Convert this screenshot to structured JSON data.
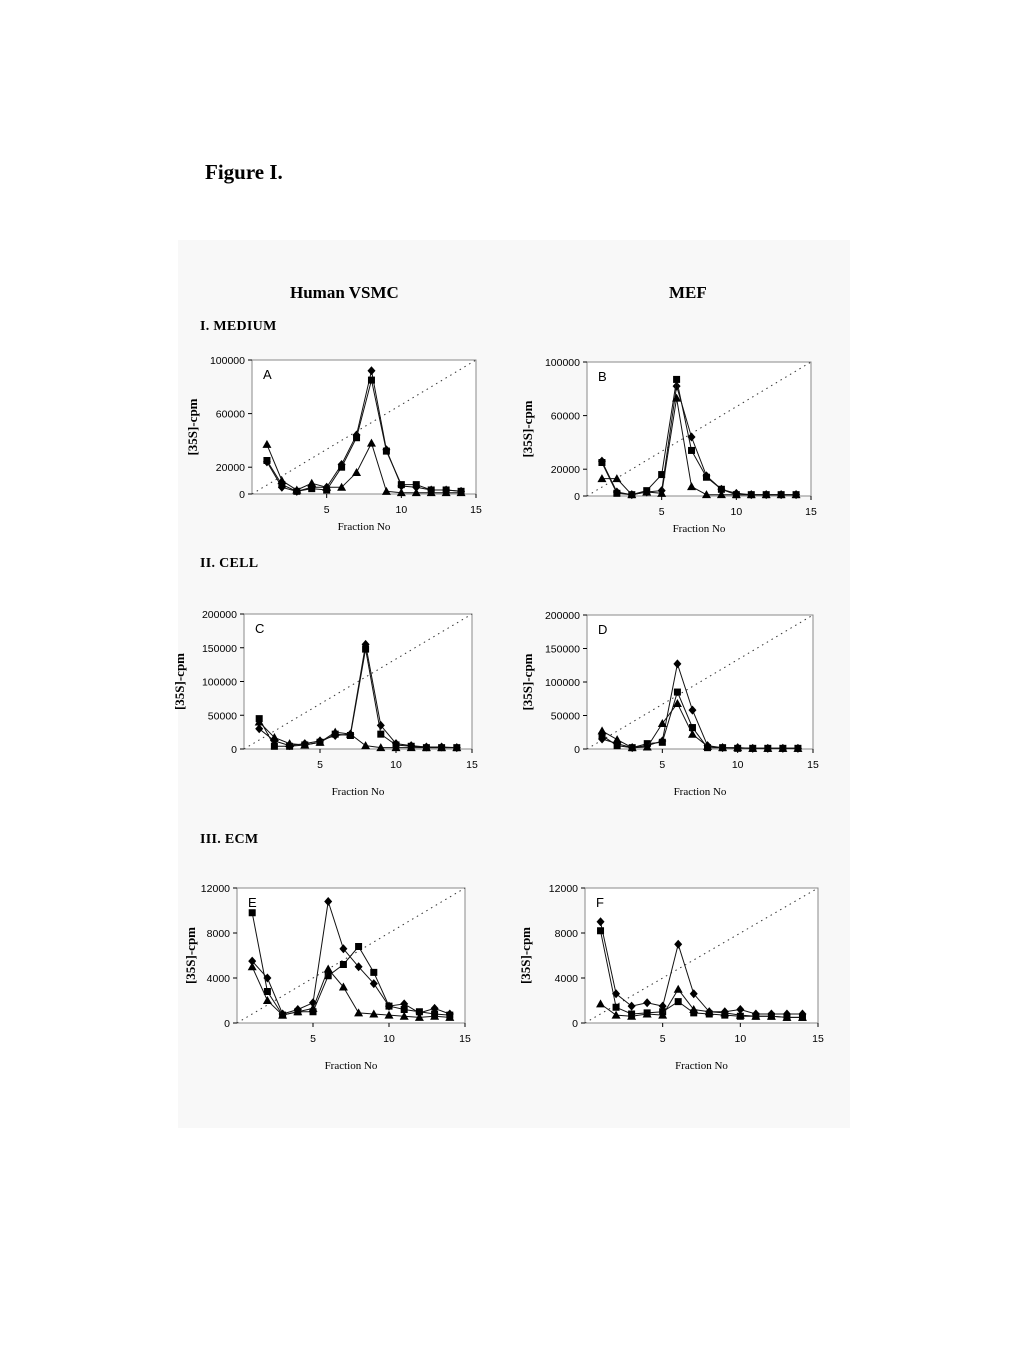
{
  "figure_title": "Figure I.",
  "column_headers": [
    "Human VSMC",
    "MEF"
  ],
  "section_headers": [
    "I. MEDIUM",
    "II. CELL",
    "III. ECM"
  ],
  "chart_data": [
    {
      "type": "line",
      "panel": "A",
      "xlabel": "Fraction No",
      "ylabel": "[35S]-cpm",
      "xlim": [
        0,
        15
      ],
      "ylim": [
        0,
        100000
      ],
      "yticks": [
        0,
        20000,
        60000,
        100000
      ],
      "xticks": [
        5,
        10,
        15
      ],
      "series": [
        {
          "marker": "diamond",
          "x": [
            1,
            2,
            3,
            4,
            5,
            6,
            7,
            8,
            9,
            10,
            11,
            12,
            13,
            14
          ],
          "values": [
            24000,
            5000,
            2000,
            5000,
            5000,
            22000,
            44000,
            92000,
            33000,
            6000,
            5000,
            3000,
            3000,
            2000
          ]
        },
        {
          "marker": "square",
          "x": [
            1,
            2,
            3,
            4,
            5,
            6,
            7,
            8,
            9,
            10,
            11,
            12,
            13,
            14
          ],
          "values": [
            25000,
            7000,
            2000,
            4000,
            3000,
            20000,
            42000,
            85000,
            32000,
            7000,
            7000,
            3000,
            3000,
            2000
          ]
        },
        {
          "marker": "triangle",
          "x": [
            1,
            2,
            3,
            4,
            5,
            6,
            7,
            8,
            9,
            10,
            11,
            12,
            13,
            14
          ],
          "values": [
            37000,
            10000,
            3000,
            8000,
            5000,
            5000,
            16000,
            38000,
            2000,
            1000,
            1000,
            1000,
            1000,
            1000
          ]
        }
      ]
    },
    {
      "type": "line",
      "panel": "B",
      "xlabel": "Fraction No",
      "ylabel": "[35S]-cpm",
      "xlim": [
        0,
        15
      ],
      "ylim": [
        0,
        100000
      ],
      "yticks": [
        0,
        20000,
        60000,
        100000
      ],
      "xticks": [
        5,
        10,
        15
      ],
      "series": [
        {
          "marker": "diamond",
          "x": [
            1,
            2,
            3,
            4,
            5,
            6,
            7,
            8,
            9,
            10,
            11,
            12,
            13,
            14
          ],
          "values": [
            26000,
            3000,
            1000,
            3000,
            4000,
            82000,
            44000,
            15000,
            5000,
            2000,
            1000,
            1000,
            1000,
            1000
          ]
        },
        {
          "marker": "square",
          "x": [
            1,
            2,
            3,
            4,
            5,
            6,
            7,
            8,
            9,
            10,
            11,
            12,
            13,
            14
          ],
          "values": [
            25000,
            2000,
            1000,
            4000,
            16000,
            87000,
            34000,
            14000,
            5000,
            1000,
            1000,
            1000,
            1000,
            1000
          ]
        },
        {
          "marker": "triangle",
          "x": [
            1,
            2,
            3,
            4,
            5,
            6,
            7,
            8,
            9,
            10,
            11,
            12,
            13,
            14
          ],
          "values": [
            13000,
            13000,
            1000,
            3000,
            2000,
            73000,
            7000,
            1000,
            1000,
            1000,
            1000,
            1000,
            1000,
            1000
          ]
        }
      ]
    },
    {
      "type": "line",
      "panel": "C",
      "xlabel": "Fraction No",
      "ylabel": "[35S]-cpm",
      "xlim": [
        0,
        15
      ],
      "ylim": [
        0,
        200000
      ],
      "yticks": [
        0,
        50000,
        100000,
        150000,
        200000
      ],
      "xticks": [
        5,
        10,
        15
      ],
      "series": [
        {
          "marker": "diamond",
          "x": [
            1,
            2,
            3,
            4,
            5,
            6,
            7,
            8,
            9,
            10,
            11,
            12,
            13,
            14
          ],
          "values": [
            30000,
            12000,
            5000,
            8000,
            12000,
            20000,
            22000,
            155000,
            35000,
            8000,
            5000,
            3000,
            3000,
            2000
          ]
        },
        {
          "marker": "square",
          "x": [
            1,
            2,
            3,
            4,
            5,
            6,
            7,
            8,
            9,
            10,
            11,
            12,
            13,
            14
          ],
          "values": [
            45000,
            4000,
            4000,
            6000,
            10000,
            22000,
            20000,
            148000,
            22000,
            6000,
            4000,
            2000,
            2000,
            2000
          ]
        },
        {
          "marker": "triangle",
          "x": [
            1,
            2,
            3,
            4,
            5,
            6,
            7,
            8,
            9,
            10,
            11,
            12,
            13,
            14
          ],
          "values": [
            40000,
            17000,
            8000,
            6000,
            10000,
            25000,
            22000,
            5000,
            2000,
            2000,
            2000,
            2000,
            2000,
            2000
          ]
        }
      ]
    },
    {
      "type": "line",
      "panel": "D",
      "xlabel": "Fraction No",
      "ylabel": "[35S]-cpm",
      "xlim": [
        0,
        15
      ],
      "ylim": [
        0,
        200000
      ],
      "yticks": [
        0,
        50000,
        100000,
        150000,
        200000
      ],
      "xticks": [
        5,
        10,
        15
      ],
      "series": [
        {
          "marker": "diamond",
          "x": [
            1,
            2,
            3,
            4,
            5,
            6,
            7,
            8,
            9,
            10,
            11,
            12,
            13,
            14
          ],
          "values": [
            15000,
            8000,
            2000,
            5000,
            12000,
            127000,
            58000,
            5000,
            2000,
            2000,
            1000,
            1000,
            1000,
            1000
          ]
        },
        {
          "marker": "square",
          "x": [
            1,
            2,
            3,
            4,
            5,
            6,
            7,
            8,
            9,
            10,
            11,
            12,
            13,
            14
          ],
          "values": [
            20000,
            5000,
            2000,
            8000,
            10000,
            85000,
            32000,
            2000,
            2000,
            1000,
            1000,
            1000,
            1000,
            1000
          ]
        },
        {
          "marker": "triangle",
          "x": [
            1,
            2,
            3,
            4,
            5,
            6,
            7,
            8,
            9,
            10,
            11,
            12,
            13,
            14
          ],
          "values": [
            27000,
            14000,
            2000,
            3000,
            38000,
            68000,
            22000,
            4000,
            2000,
            2000,
            1000,
            1000,
            1000,
            1000
          ]
        }
      ]
    },
    {
      "type": "line",
      "panel": "E",
      "xlabel": "Fraction No",
      "ylabel": "[35S]-cpm",
      "xlim": [
        0,
        15
      ],
      "ylim": [
        0,
        12000
      ],
      "yticks": [
        0,
        4000,
        8000,
        12000
      ],
      "xticks": [
        5,
        10,
        15
      ],
      "series": [
        {
          "marker": "diamond",
          "x": [
            1,
            2,
            3,
            4,
            5,
            6,
            7,
            8,
            9,
            10,
            11,
            12,
            13,
            14
          ],
          "values": [
            5500,
            4000,
            800,
            1200,
            1800,
            10800,
            6600,
            5000,
            3500,
            1500,
            1700,
            900,
            1300,
            800
          ]
        },
        {
          "marker": "square",
          "x": [
            1,
            2,
            3,
            4,
            5,
            6,
            7,
            8,
            9,
            10,
            11,
            12,
            13,
            14
          ],
          "values": [
            9800,
            2800,
            700,
            1000,
            1000,
            4200,
            5200,
            6800,
            4500,
            1500,
            1200,
            1000,
            800,
            700
          ]
        },
        {
          "marker": "triangle",
          "x": [
            1,
            2,
            3,
            4,
            5,
            6,
            7,
            8,
            9,
            10,
            11,
            12,
            13,
            14
          ],
          "values": [
            5000,
            2000,
            700,
            1000,
            1300,
            4800,
            3200,
            900,
            800,
            700,
            600,
            500,
            600,
            500
          ]
        }
      ]
    },
    {
      "type": "line",
      "panel": "F",
      "xlabel": "Fraction No",
      "ylabel": "[35S]-cpm",
      "xlim": [
        0,
        15
      ],
      "ylim": [
        0,
        12000
      ],
      "yticks": [
        0,
        4000,
        8000,
        12000
      ],
      "xticks": [
        5,
        10,
        15
      ],
      "series": [
        {
          "marker": "diamond",
          "x": [
            1,
            2,
            3,
            4,
            5,
            6,
            7,
            8,
            9,
            10,
            11,
            12,
            13,
            14
          ],
          "values": [
            9000,
            2600,
            1500,
            1800,
            1500,
            7000,
            2600,
            1000,
            1000,
            1200,
            800,
            800,
            800,
            800
          ]
        },
        {
          "marker": "square",
          "x": [
            1,
            2,
            3,
            4,
            5,
            6,
            7,
            8,
            9,
            10,
            11,
            12,
            13,
            14
          ],
          "values": [
            8200,
            1400,
            800,
            900,
            1000,
            1900,
            900,
            800,
            700,
            600,
            600,
            600,
            500,
            500
          ]
        },
        {
          "marker": "triangle",
          "x": [
            1,
            2,
            3,
            4,
            5,
            6,
            7,
            8,
            9,
            10,
            11,
            12,
            13,
            14
          ],
          "values": [
            1700,
            700,
            600,
            800,
            700,
            3000,
            1200,
            1000,
            900,
            700,
            600,
            600,
            500,
            500
          ]
        }
      ]
    }
  ]
}
